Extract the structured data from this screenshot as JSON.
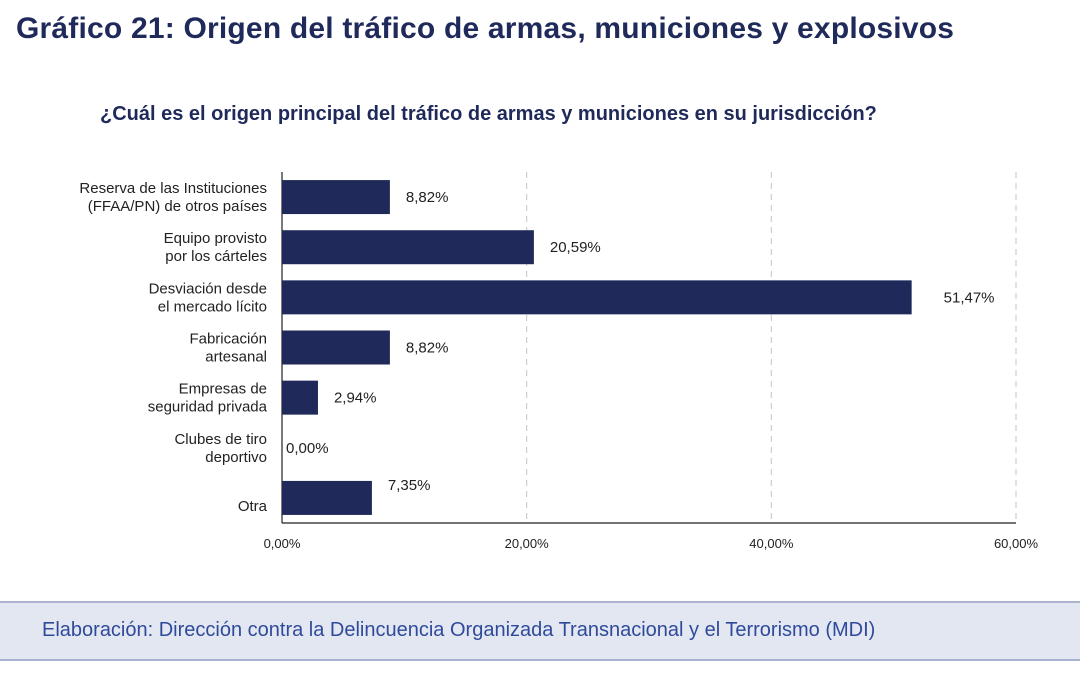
{
  "header": {
    "title": "Gráfico 21: Origen del tráfico de armas, municiones y explosivos"
  },
  "footer": {
    "text": "Elaboración: Dirección contra la Delincuencia Organizada Transnacional y el Terrorismo (MDI)"
  },
  "colors": {
    "bar": "#1f2a5a",
    "title": "#1f2a5a",
    "footer_text": "#2f4a9a",
    "footer_bg": "#e3e7f2"
  },
  "chart_data": {
    "type": "bar",
    "orientation": "horizontal",
    "title": "¿Cuál es el origen principal del tráfico de armas y municiones en su jurisdicción?",
    "xlabel": "",
    "ylabel": "",
    "categories": [
      [
        "Reserva de las Instituciones",
        "(FFAA/PN) de otros países"
      ],
      [
        "Equipo provisto",
        "por los cárteles"
      ],
      [
        "Desviación desde",
        "el mercado lícito"
      ],
      [
        "Fabricación",
        "artesanal"
      ],
      [
        "Empresas de",
        "seguridad privada"
      ],
      [
        "Clubes de tiro",
        "deportivo"
      ],
      [
        "Otra"
      ]
    ],
    "values": [
      8.82,
      20.59,
      51.47,
      8.82,
      2.94,
      0.0,
      7.35
    ],
    "value_labels": [
      "8,82%",
      "20,59%",
      "51,47%",
      "8,82%",
      "2,94%",
      "0,00%",
      "7,35%"
    ],
    "xlim": [
      0,
      60
    ],
    "xticks": [
      0,
      20,
      40,
      60
    ],
    "xtick_labels": [
      "0,00%",
      "20,00%",
      "40,00%",
      "60,00%"
    ],
    "grid": "vertical dashed",
    "legend": "none"
  }
}
